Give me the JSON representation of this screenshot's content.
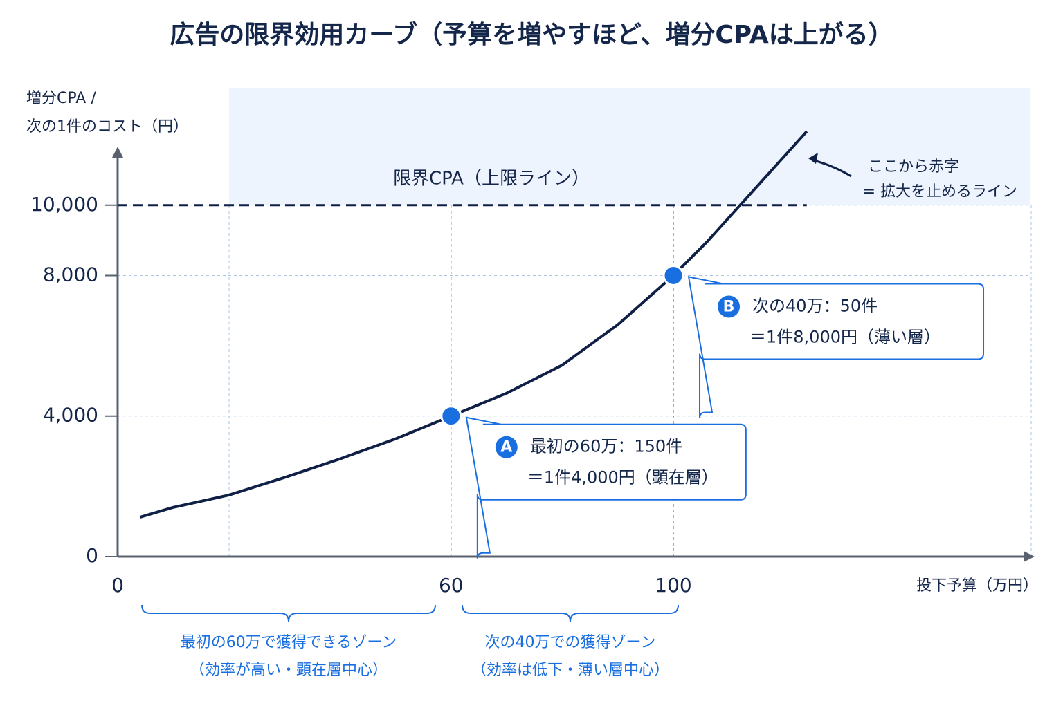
{
  "chart_data": {
    "type": "line",
    "title": "広告の限界効用カーブ（予算を増やすほど、増分CPAは上がる）",
    "y_label": [
      "増分CPA /",
      "次の1件のコスト（円）"
    ],
    "x_label": "投下予算（万円）",
    "xlim": [
      0,
      165
    ],
    "ylim": [
      0,
      12200
    ],
    "xticks": [
      0,
      60,
      100
    ],
    "yticks": [
      0,
      {
        "value": 4000,
        "label": "4,000"
      },
      {
        "value": 8000,
        "label": "8,000"
      },
      {
        "value": 10000,
        "label": "10,000"
      }
    ],
    "grid": true,
    "series": [
      {
        "color": "#0f1f45",
        "x": [
          4,
          10,
          20,
          30,
          40,
          50,
          60,
          70,
          80,
          90,
          100,
          106,
          112,
          118,
          124
        ],
        "values": [
          1120,
          1400,
          1750,
          2250,
          2780,
          3350,
          4000,
          4650,
          5450,
          6600,
          8000,
          8950,
          10000,
          11050,
          12100
        ]
      }
    ],
    "threshold": {
      "value": 10000,
      "label": "限界CPA（上限ライン）",
      "note": [
        "ここから赤字",
        "= 拡大を止めるライン"
      ]
    },
    "points": [
      {
        "badge": "A",
        "x": 60,
        "y": 4000,
        "lines": [
          "最初の60万：150件",
          "＝1件4,000円（顕在層）"
        ]
      },
      {
        "badge": "B",
        "x": 100,
        "y": 8000,
        "lines": [
          "次の40万：50件",
          "＝1件8,000円（薄い層）"
        ]
      }
    ],
    "zones": [
      {
        "lines": [
          "最初の60万で獲得できるゾーン",
          "（効率が高い・顕在層中心）"
        ]
      },
      {
        "lines": [
          "次の40万での獲得ゾーン",
          "（効率は低下・薄い層中心）"
        ]
      }
    ]
  }
}
